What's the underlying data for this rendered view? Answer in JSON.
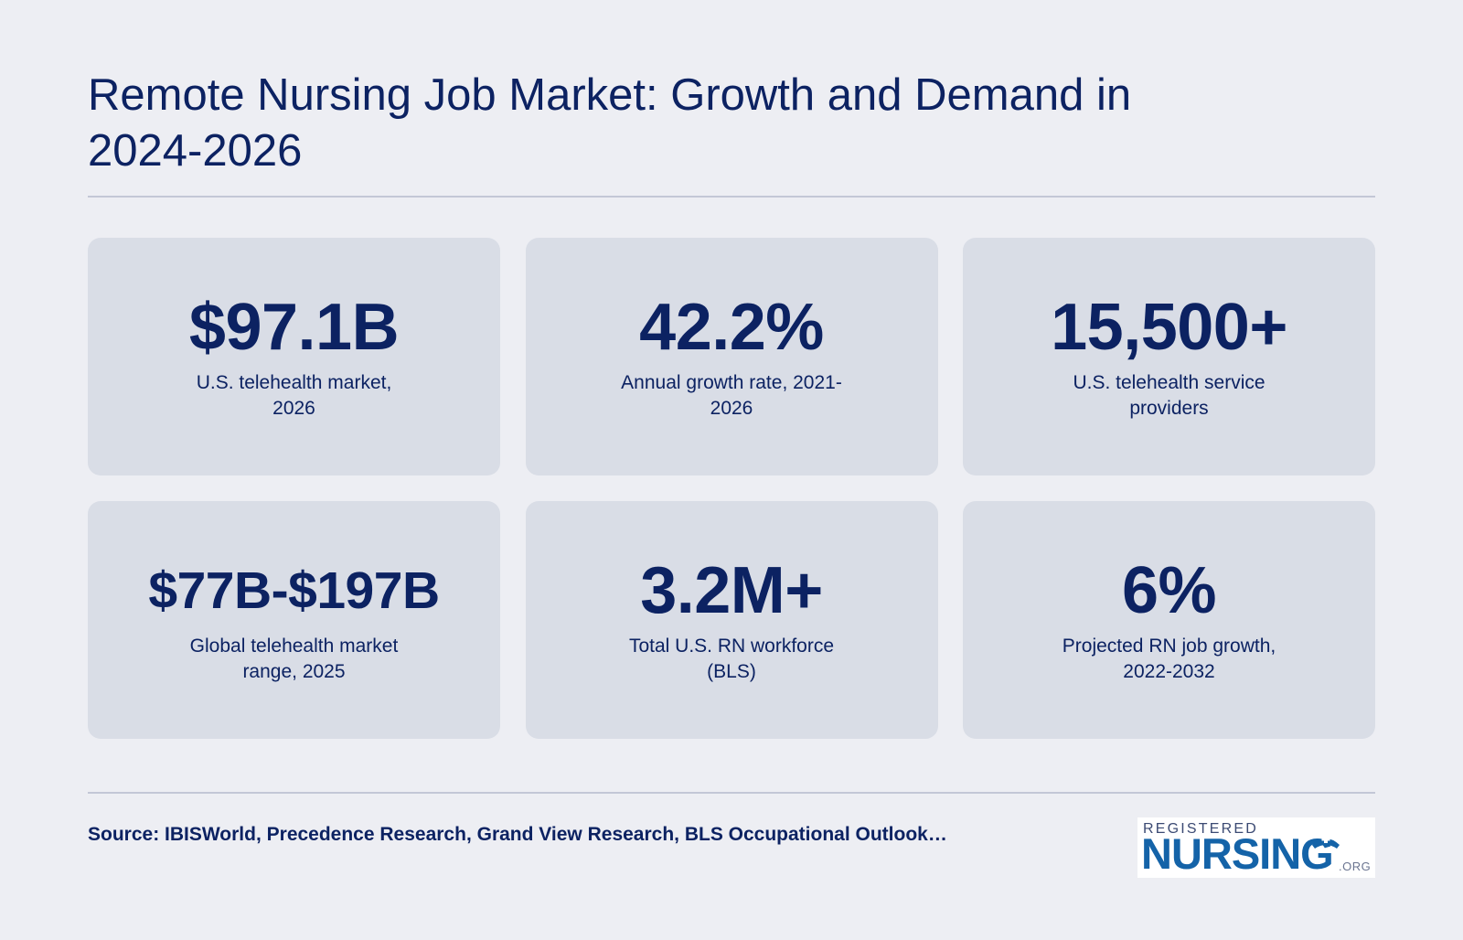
{
  "title": "Remote Nursing Job Market: Growth and Demand in 2024-2026",
  "stats": [
    {
      "value": "$97.1B",
      "label": "U.S. telehealth market, 2026"
    },
    {
      "value": "42.2%",
      "label": "Annual growth rate, 2021-2026"
    },
    {
      "value": "15,500+",
      "label": "U.S. telehealth service providers"
    },
    {
      "value": "$77B-$197B",
      "label": "Global telehealth market range, 2025"
    },
    {
      "value": "3.2M+",
      "label": "Total U.S. RN workforce (BLS)"
    },
    {
      "value": "6%",
      "label": "Projected RN job growth, 2022-2032"
    }
  ],
  "source": "Source: IBISWorld, Precedence Research, Grand View Research, BLS Occupational Outlook…",
  "logo": {
    "top_text": "REGISTERED",
    "main_text": "NURSING",
    "suffix": ".ORG",
    "icon": "nurse-cap-icon",
    "colors": {
      "main": "#1463a8",
      "top": "#3b4a73"
    }
  },
  "colors": {
    "background": "#edeef3",
    "card": "#d9dde6",
    "text": "#0c2262",
    "rule": "#c3c7d6"
  }
}
